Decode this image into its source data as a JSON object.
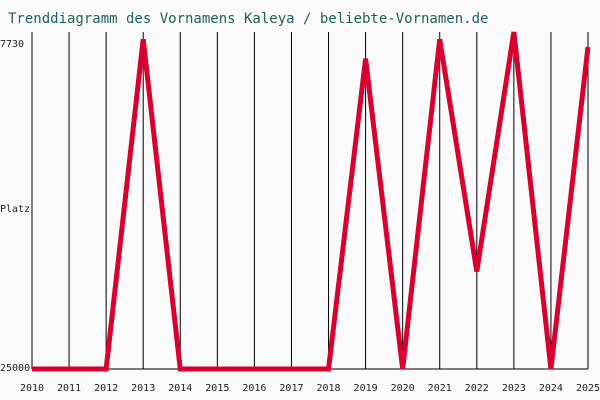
{
  "chart_data": {
    "type": "line",
    "title": "Trenddiagramm des Vornamens Kaleya / beliebte-Vornamen.de",
    "ylabel": "Platz",
    "xlabel": "",
    "y_axis_inverted": true,
    "ylim": [
      7730,
      25000
    ],
    "y_tick_labels": [
      "7730",
      "25000"
    ],
    "x": [
      2010,
      2011,
      2012,
      2013,
      2014,
      2015,
      2016,
      2017,
      2018,
      2019,
      2020,
      2021,
      2022,
      2023,
      2024,
      2025
    ],
    "series": [
      {
        "values": [
          25000,
          25000,
          25000,
          8100,
          25000,
          25000,
          25000,
          25000,
          25000,
          9100,
          25000,
          8100,
          20000,
          7730,
          25000,
          8500
        ]
      }
    ],
    "grid": "vertical lines at each year",
    "line_color": "#d8002f",
    "grid_color": "#000000",
    "background": "#fafafa"
  }
}
